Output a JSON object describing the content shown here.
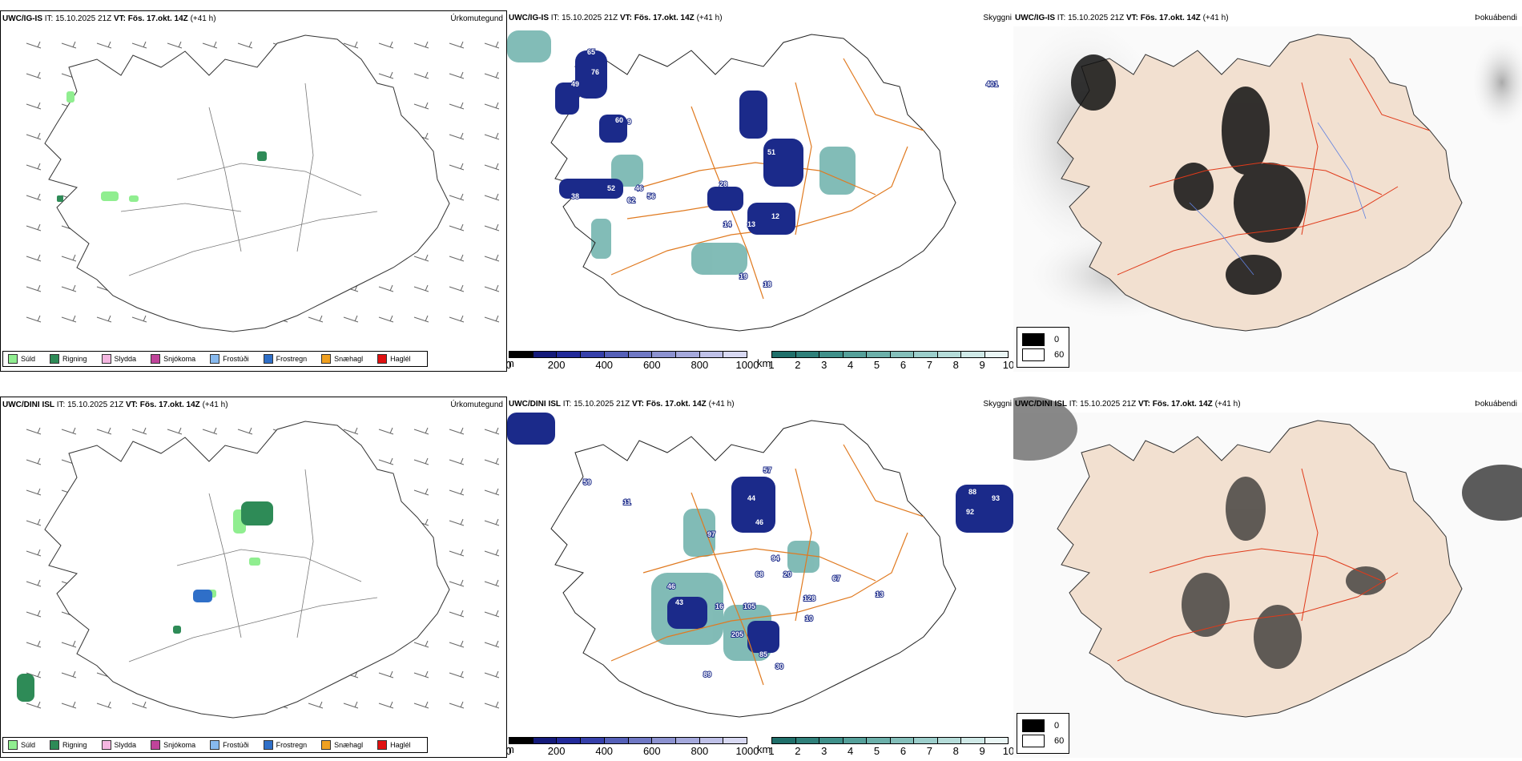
{
  "rows": [
    {
      "model": "UWC/IG-IS",
      "it_label": "IT:",
      "it_value": "15.10.2025 21Z",
      "vt_label": "VT:",
      "vt_value": "Fös. 17.okt. 14Z",
      "lead": "(+41 h)"
    },
    {
      "model": "UWC/DINI ISL",
      "it_label": "IT:",
      "it_value": "15.10.2025 21Z",
      "vt_label": "VT:",
      "vt_value": "Fös. 17.okt. 14Z",
      "lead": "(+41 h)"
    }
  ],
  "panel_types": {
    "precip": "Úrkomutegund",
    "visibility": "Skyggni",
    "fog": "Þokuábendi"
  },
  "precip_legend": [
    {
      "label": "Súld",
      "color": "#90ee90"
    },
    {
      "label": "Rigning",
      "color": "#2e8b57"
    },
    {
      "label": "Slydda",
      "color": "#f4b6e0"
    },
    {
      "label": "Snjókoma",
      "color": "#c0449a"
    },
    {
      "label": "Frostúði",
      "color": "#87b9ee"
    },
    {
      "label": "Frostregn",
      "color": "#2f6fc8"
    },
    {
      "label": "Snæhagl",
      "color": "#f0a020"
    },
    {
      "label": "Haglél",
      "color": "#e01010"
    }
  ],
  "cloud_base": {
    "unit": "m",
    "ticks": [
      "0",
      "200",
      "400",
      "600",
      "800",
      "1000"
    ],
    "colors": [
      "#000000",
      "#141a7a",
      "#222a9a",
      "#3640aa",
      "#5560b8",
      "#6f78c4",
      "#8c92d0",
      "#a5a9dc",
      "#bfc1e8",
      "#d8d9f2"
    ]
  },
  "visibility_scale": {
    "unit": "km",
    "ticks": [
      "1",
      "2",
      "3",
      "4",
      "5",
      "6",
      "7",
      "8",
      "9",
      "10"
    ],
    "colors": [
      "#1f6f6a",
      "#2f807a",
      "#3f908a",
      "#55a09a",
      "#6cb0aa",
      "#84bfba",
      "#9ccecb",
      "#b5dcd9",
      "#cfe9e7",
      "#eaf6f5"
    ]
  },
  "fog_legend": [
    {
      "value": "0",
      "color": "#000000"
    },
    {
      "value": "60",
      "color": "#ffffff"
    }
  ],
  "visibility_labels_top": [
    "65",
    "76",
    "49",
    "60",
    "9",
    "51",
    "28",
    "52",
    "62",
    "56",
    "38",
    "14",
    "13",
    "12",
    "19",
    "46",
    "18",
    "401"
  ],
  "visibility_labels_bottom": [
    "59",
    "11",
    "44",
    "46",
    "57",
    "97",
    "68",
    "20",
    "46",
    "43",
    "16",
    "105",
    "205",
    "85",
    "89",
    "30",
    "128",
    "10",
    "13",
    "94",
    "88",
    "93",
    "92",
    "67"
  ]
}
